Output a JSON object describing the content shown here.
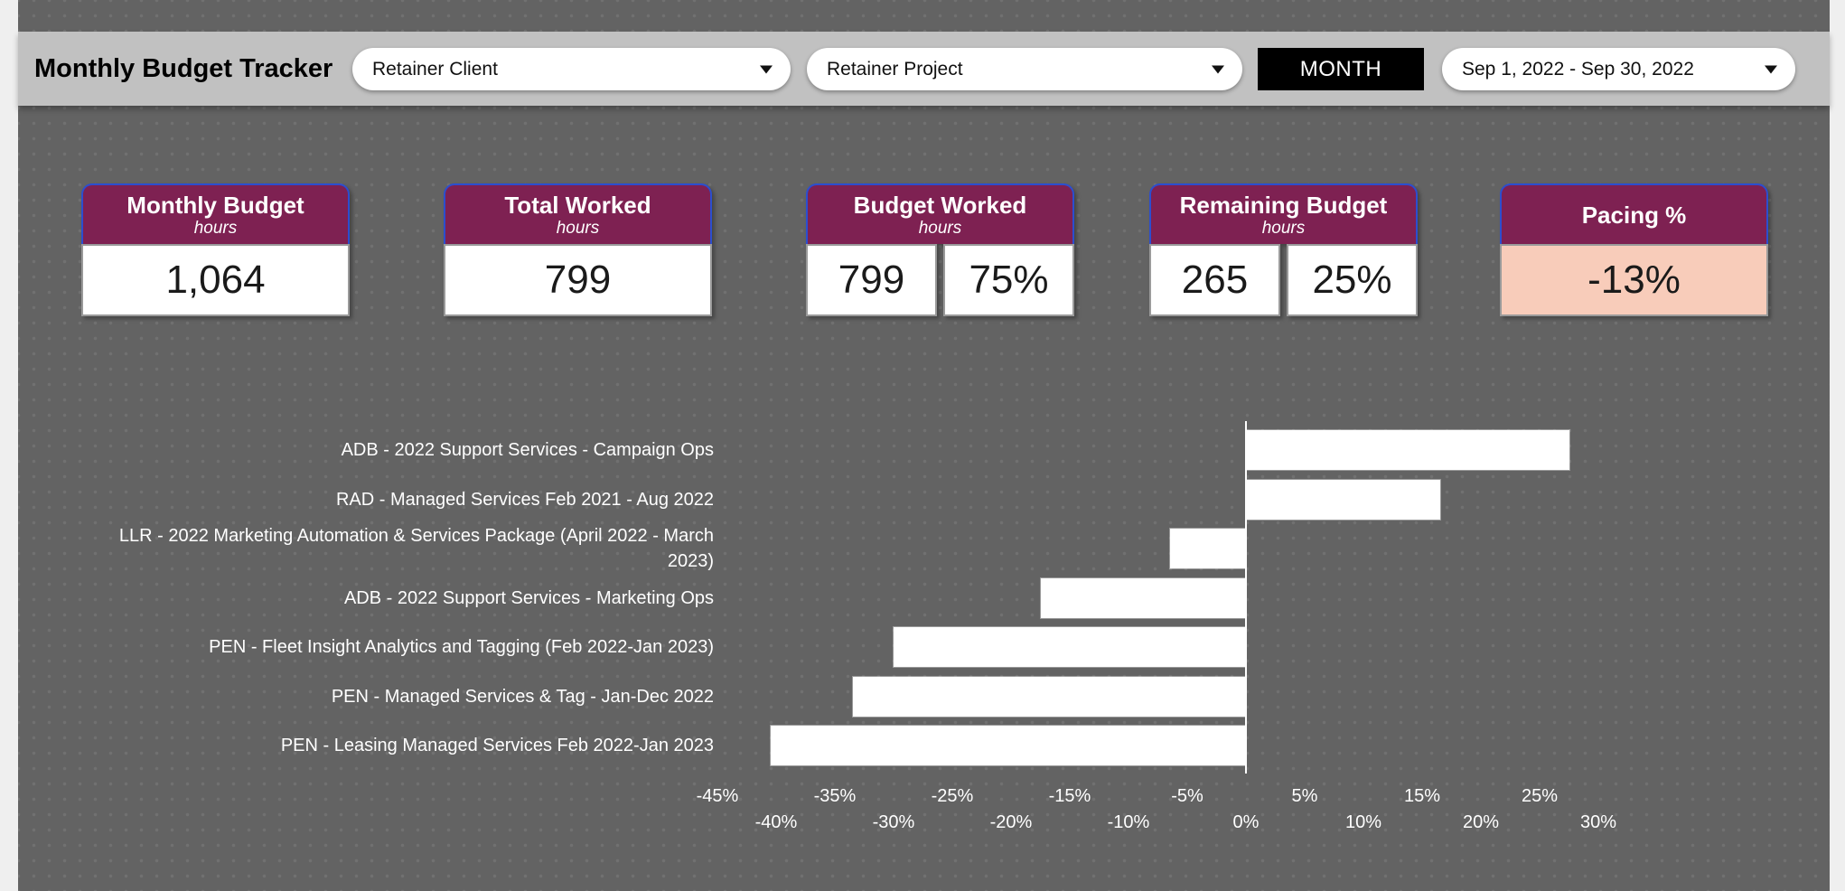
{
  "header": {
    "title": "Monthly Budget Tracker",
    "client_filter": {
      "value": "Retainer Client"
    },
    "project_filter": {
      "value": "Retainer Project"
    },
    "period_toggle": "MONTH",
    "date_range": {
      "value": "Sep 1, 2022 - Sep 30, 2022"
    }
  },
  "scorecards": [
    {
      "title": "Monthly Budget",
      "subtitle": "hours",
      "values": [
        "1,064"
      ]
    },
    {
      "title": "Total Worked",
      "subtitle": "hours",
      "values": [
        "799"
      ]
    },
    {
      "title": "Budget Worked",
      "subtitle": "hours",
      "values": [
        "799",
        "75%"
      ]
    },
    {
      "title": "Remaining Budget",
      "subtitle": "hours",
      "values": [
        "265",
        "25%"
      ]
    },
    {
      "title": "Pacing %",
      "subtitle": "",
      "values": [
        "-13%"
      ],
      "value_bg": "#f8ccba"
    }
  ],
  "chart_data": {
    "type": "bar",
    "orientation": "horizontal",
    "title": "",
    "xlabel": "",
    "ylabel": "",
    "unit": "%",
    "xlim": [
      -46,
      32
    ],
    "grid": false,
    "legend": "none",
    "bar_color": "#ffffff",
    "axis_color": "#ffffff",
    "text_color": "#ffffff",
    "categories": [
      "ADB - 2022 Support Services - Campaign Ops",
      "RAD - Managed Services Feb 2021 - Aug 2022",
      "LLR - 2022 Marketing Automation & Services Package (April 2022 - March 2023)",
      "ADB - 2022 Support Services - Marketing Ops",
      "PEN - Fleet Insight Analytics and Tagging (Feb 2022-Jan 2023)",
      "PEN - Managed Services & Tag - Jan-Dec 2022",
      "PEN - Leasing Managed Services Feb 2022-Jan 2023"
    ],
    "values": [
      27.5,
      16.5,
      -6.5,
      -17.5,
      -30,
      -33.5,
      -40.5
    ],
    "tick_labels": [
      "-45%",
      "-40%",
      "-35%",
      "-30%",
      "-25%",
      "-20%",
      "-15%",
      "-10%",
      "-5%",
      "0%",
      "5%",
      "10%",
      "15%",
      "20%",
      "25%",
      "30%"
    ],
    "ticks": [
      -45,
      -40,
      -35,
      -30,
      -25,
      -20,
      -15,
      -10,
      -5,
      0,
      5,
      10,
      15,
      20,
      25,
      30
    ]
  },
  "colors": {
    "page_margin": "#efefef",
    "canvas": "#636363",
    "topbar": "#c1c1c1",
    "card_header": "#7e2152",
    "card_border": "#2c4ecf",
    "pacing_highlight": "#f8ccba",
    "bar": "#ffffff"
  }
}
